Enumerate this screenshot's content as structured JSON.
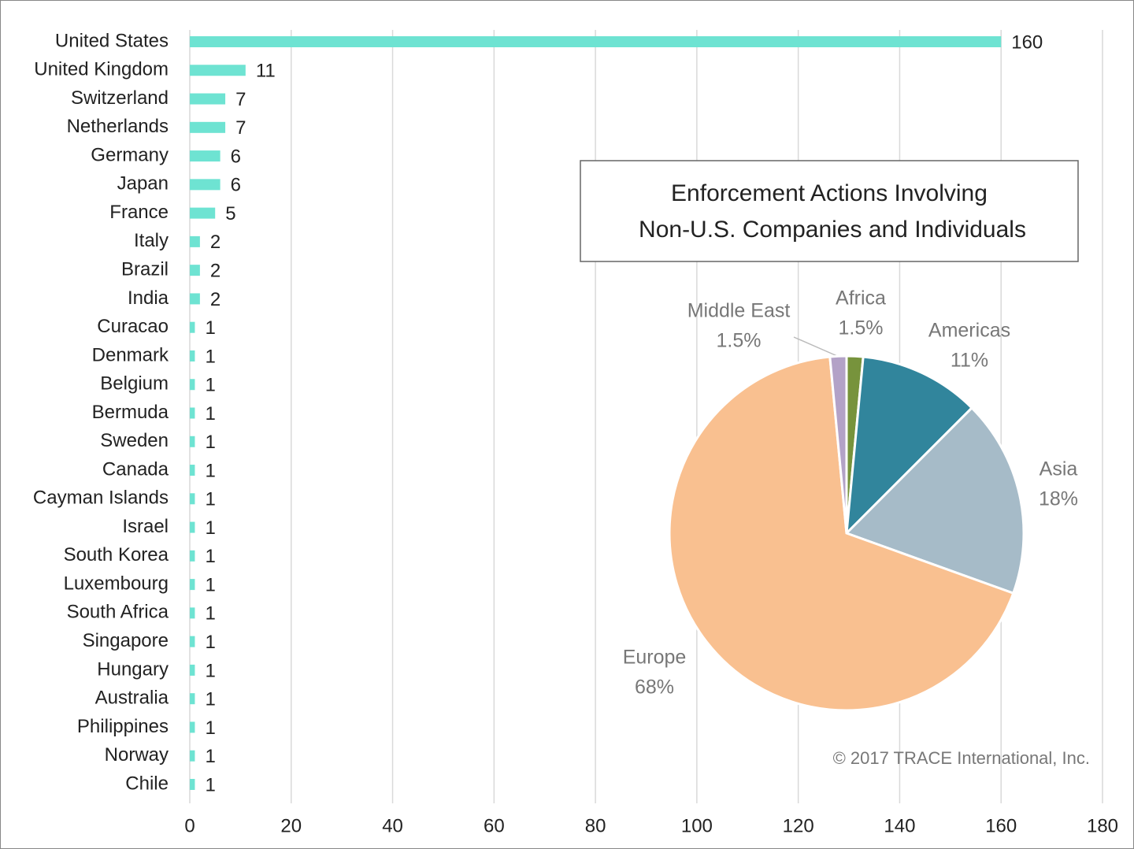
{
  "chart_data": [
    {
      "type": "bar",
      "orientation": "horizontal",
      "categories": [
        "United States",
        "United Kingdom",
        "Switzerland",
        "Netherlands",
        "Germany",
        "Japan",
        "France",
        "Italy",
        "Brazil",
        "India",
        "Curacao",
        "Denmark",
        "Belgium",
        "Bermuda",
        "Sweden",
        "Canada",
        "Cayman Islands",
        "Israel",
        "South Korea",
        "Luxembourg",
        "South Africa",
        "Singapore",
        "Hungary",
        "Australia",
        "Philippines",
        "Norway",
        "Chile"
      ],
      "values": [
        160,
        11,
        7,
        7,
        6,
        6,
        5,
        2,
        2,
        2,
        1,
        1,
        1,
        1,
        1,
        1,
        1,
        1,
        1,
        1,
        1,
        1,
        1,
        1,
        1,
        1,
        1
      ],
      "color": "#6ee3d2",
      "xlim": [
        0,
        180
      ],
      "xticks": [
        0,
        20,
        40,
        60,
        80,
        100,
        120,
        140,
        160,
        180
      ],
      "grid": true
    },
    {
      "type": "pie",
      "title": [
        "Enforcement Actions Involving",
        "Non-U.S. Companies and Individuals"
      ],
      "categories": [
        "Africa",
        "Americas",
        "Asia",
        "Europe",
        "Middle East"
      ],
      "values": [
        1.5,
        11,
        18,
        68,
        1.5
      ],
      "value_labels": [
        "1.5%",
        "11%",
        "18%",
        "68%",
        "1.5%"
      ],
      "colors": [
        "#77933c",
        "#31859c",
        "#a6bbc8",
        "#f9c090",
        "#b3a2c7"
      ],
      "annotation": "© 2017 TRACE International, Inc."
    }
  ]
}
